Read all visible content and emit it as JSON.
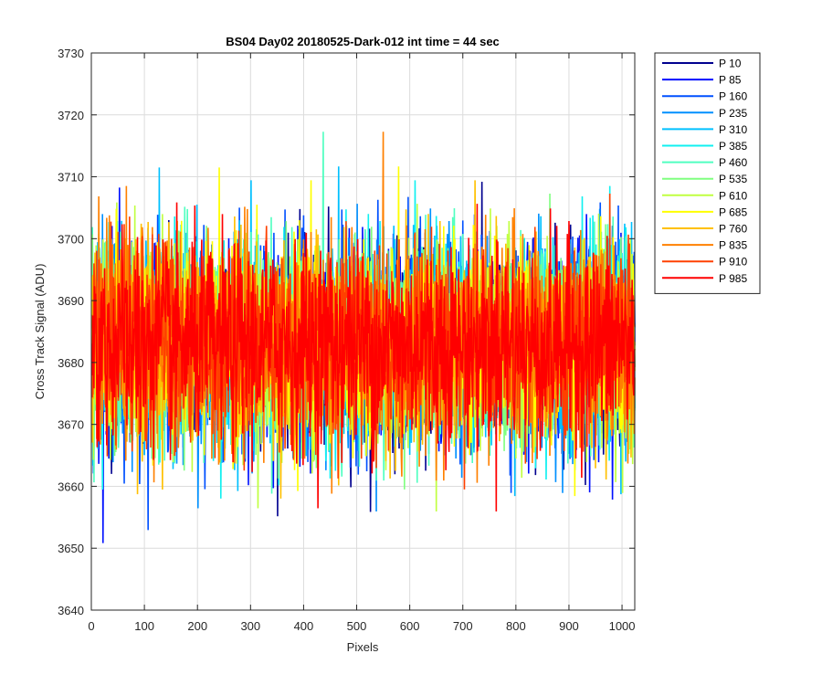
{
  "chart_data": {
    "type": "line",
    "title": "BS04 Day02 20180525-Dark-012 int time = 44 sec",
    "xlabel": "Pixels",
    "ylabel": "Cross Track Signal (ADU)",
    "xlim": [
      0,
      1024
    ],
    "ylim": [
      3640,
      3730
    ],
    "xticks": [
      0,
      100,
      200,
      300,
      400,
      500,
      600,
      700,
      800,
      900,
      1000
    ],
    "yticks": [
      3640,
      3650,
      3660,
      3670,
      3680,
      3690,
      3700,
      3710,
      3720,
      3730
    ],
    "grid": true,
    "legend_position": "outside-top-right",
    "noise_model": {
      "mean": 3683,
      "spread": 8,
      "points": 1024,
      "note_min_observed": 3645,
      "note_max_observed": 3722
    },
    "series": [
      {
        "name": "P 10",
        "color": "#00008f"
      },
      {
        "name": "P 85",
        "color": "#0010ff"
      },
      {
        "name": "P 160",
        "color": "#0050ff"
      },
      {
        "name": "P 235",
        "color": "#0090ff"
      },
      {
        "name": "P 310",
        "color": "#00c0ff"
      },
      {
        "name": "P 385",
        "color": "#10f0f0"
      },
      {
        "name": "P 460",
        "color": "#50ffc0"
      },
      {
        "name": "P 535",
        "color": "#80ff80"
      },
      {
        "name": "P 610",
        "color": "#c0ff40"
      },
      {
        "name": "P 685",
        "color": "#ffff00"
      },
      {
        "name": "P 760",
        "color": "#ffc000"
      },
      {
        "name": "P 835",
        "color": "#ff8000"
      },
      {
        "name": "P 910",
        "color": "#ff4000"
      },
      {
        "name": "P 985",
        "color": "#ff0000"
      }
    ]
  }
}
